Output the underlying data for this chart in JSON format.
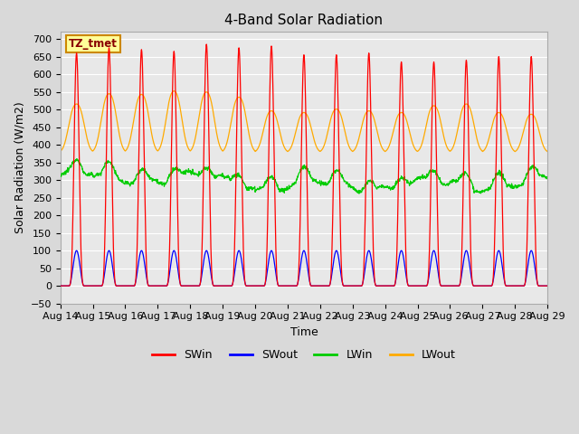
{
  "title": "4-Band Solar Radiation",
  "xlabel": "Time",
  "ylabel": "Solar Radiation (W/m2)",
  "ylim": [
    -50,
    720
  ],
  "legend_labels": [
    "SWin",
    "SWout",
    "LWin",
    "LWout"
  ],
  "legend_colors": [
    "#ff0000",
    "#0000ff",
    "#00cc00",
    "#ffaa00"
  ],
  "annotation_text": "TZ_tmet",
  "annotation_bg": "#ffff99",
  "annotation_border": "#cc8800",
  "annotation_text_color": "#880000",
  "num_days": 15,
  "start_day": 14,
  "hours_per_day": 24,
  "time_step_hours": 0.25,
  "background_color": "#d9d9d9",
  "plot_bg_color": "#e8e8e8",
  "grid_color": "#ffffff",
  "title_fontsize": 11,
  "axis_label_fontsize": 9,
  "tick_fontsize": 8
}
